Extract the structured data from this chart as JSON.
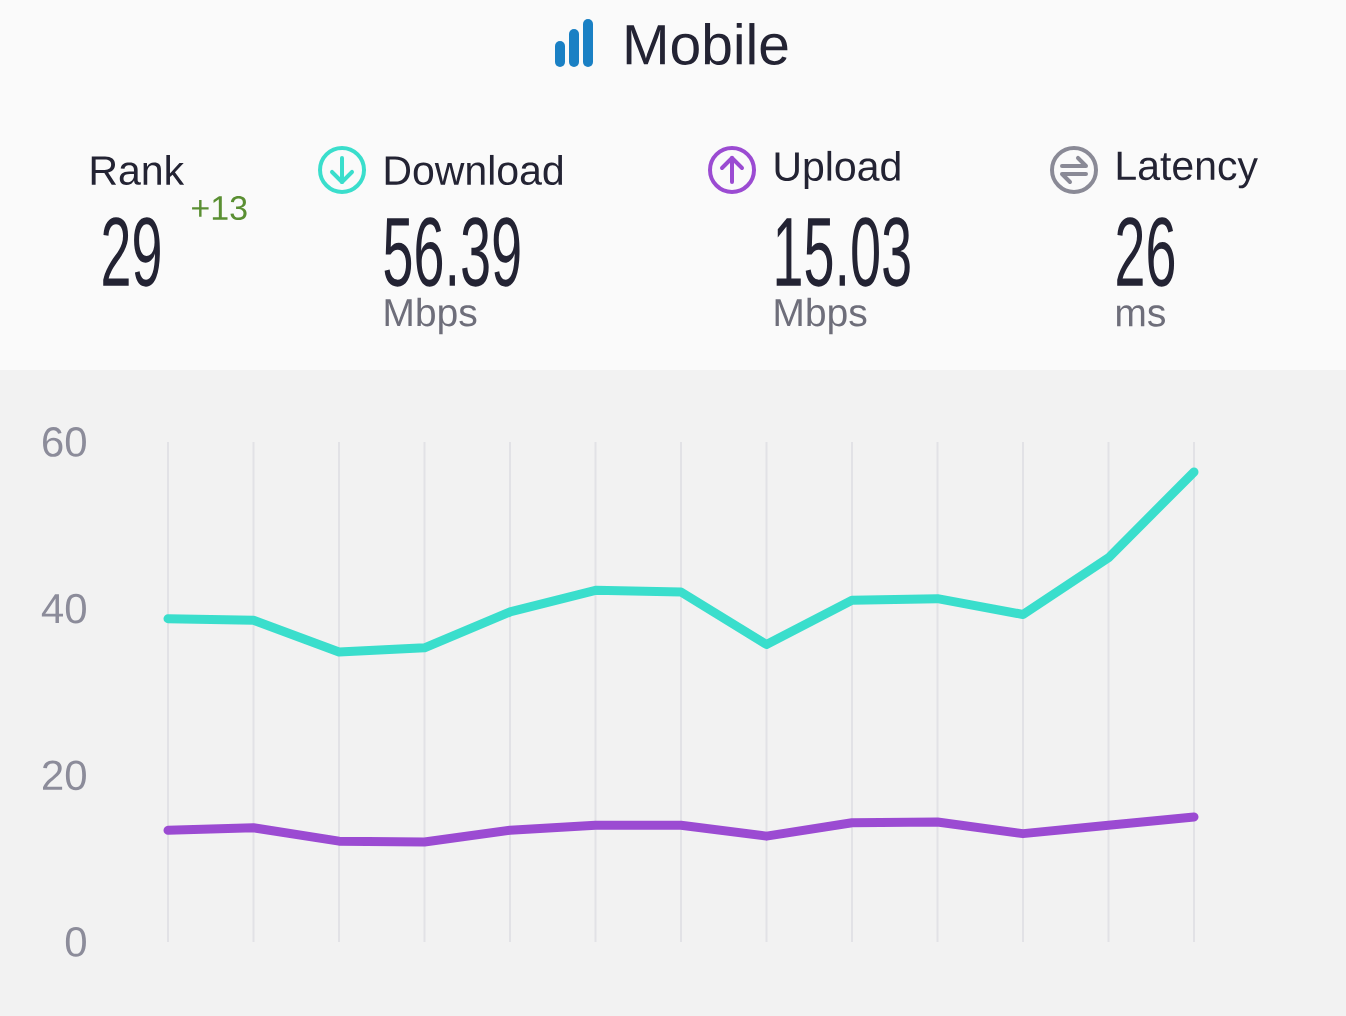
{
  "chart_data": {
    "type": "line",
    "title": "Mobile",
    "annotations": [
      "Rank",
      "29",
      "+13",
      "Download",
      "56.39",
      "Mbps",
      "Upload",
      "15.03",
      "Mbps",
      "Latency",
      "26",
      "ms"
    ],
    "categories": [
      null,
      null,
      null,
      null,
      null,
      null,
      null,
      null,
      null,
      null,
      null,
      null,
      null
    ],
    "series": [
      {
        "color": "#3adecc",
        "values": [
          38.8,
          38.6,
          34.8,
          35.3,
          39.6,
          42.2,
          42.0,
          35.7,
          41.0,
          41.2,
          39.3,
          46.1,
          56.4
        ]
      },
      {
        "color": "#9b4bd2",
        "values": [
          13.4,
          13.7,
          12.1,
          12.0,
          13.4,
          14.0,
          14.0,
          12.7,
          14.3,
          14.4,
          13.0,
          14.0,
          15.0
        ]
      }
    ],
    "ylim": [
      0,
      60
    ],
    "yticks": [
      0,
      20,
      40,
      60
    ],
    "grid": "x"
  }
}
